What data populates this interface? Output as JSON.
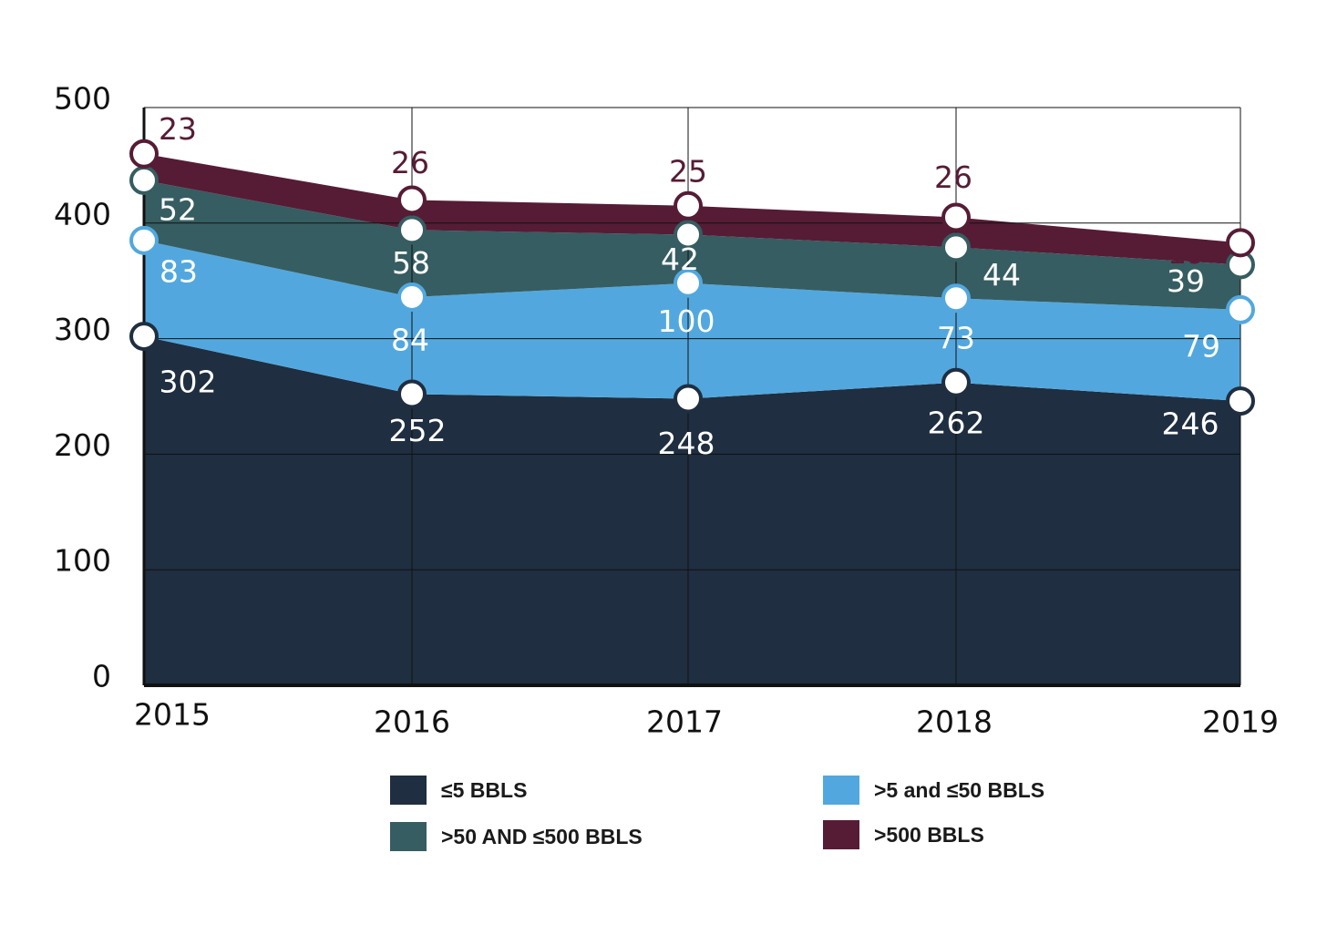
{
  "chart_data": {
    "type": "area",
    "stacked": true,
    "title": "",
    "xlabel": "",
    "ylabel": "",
    "categories": [
      "2015",
      "2016",
      "2017",
      "2018",
      "2019"
    ],
    "ylim": [
      0,
      500
    ],
    "yticks": [
      "0",
      "100",
      "200",
      "300",
      "400",
      "500"
    ],
    "grid": true,
    "legend_position": "bottom",
    "series": [
      {
        "name": "≤5 BBLS",
        "color": "#1f2e40",
        "label_color": "#ffffff",
        "marker_stroke": "#1f2e40",
        "values": [
          302,
          252,
          248,
          262,
          246
        ]
      },
      {
        "name": ">5 and ≤50 BBLS",
        "color": "#52a8de",
        "label_color": "#ffffff",
        "marker_stroke": "#52a8de",
        "values": [
          83,
          84,
          100,
          73,
          79
        ]
      },
      {
        "name": ">50 AND ≤500 BBLS",
        "color": "#365d61",
        "label_color": "#ffffff",
        "marker_stroke": "#365d61",
        "values": [
          52,
          58,
          42,
          44,
          39
        ]
      },
      {
        "name": ">500 BBLS",
        "color": "#561c35",
        "label_color": "#561c35",
        "marker_stroke": "#561c35",
        "values": [
          23,
          26,
          25,
          26,
          19
        ]
      }
    ]
  },
  "legend": {
    "items": [
      {
        "label": "≤5 BBLS",
        "color": "#1f2e40"
      },
      {
        "label": ">5 and ≤50 BBLS",
        "color": "#52a8de"
      },
      {
        "label": ">50 AND ≤500 BBLS",
        "color": "#365d61"
      },
      {
        "label": ">500 BBLS",
        "color": "#561c35"
      }
    ]
  }
}
